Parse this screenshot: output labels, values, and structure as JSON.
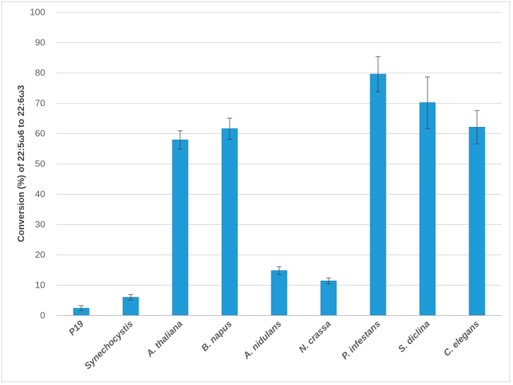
{
  "chart_data": {
    "type": "bar",
    "categories": [
      "P19",
      "Synechocystis",
      "A. thaliana",
      "B. napus",
      "A. nidulans",
      "N. crassa",
      "P. infestans",
      "S. diclina",
      "C. elegans"
    ],
    "values": [
      2.3,
      5.9,
      57.8,
      61.5,
      14.7,
      11.3,
      79.5,
      70.1,
      62.0
    ],
    "error_bars": [
      0.8,
      0.9,
      3.0,
      3.5,
      1.3,
      1.0,
      5.8,
      8.5,
      5.5
    ],
    "title": "",
    "xlabel": "",
    "ylabel": "Conversion (%) of 22:5ω6 to 22:6ω3",
    "ylim": [
      0,
      100
    ],
    "yticks": [
      0,
      10,
      20,
      30,
      40,
      50,
      60,
      70,
      80,
      90,
      100
    ],
    "grid": true,
    "legend": "none",
    "colors": {
      "bar": "#1f9bd7",
      "bar_edge": "#1a86bd",
      "grid": "#d9d9d9",
      "error": "#404040"
    }
  }
}
